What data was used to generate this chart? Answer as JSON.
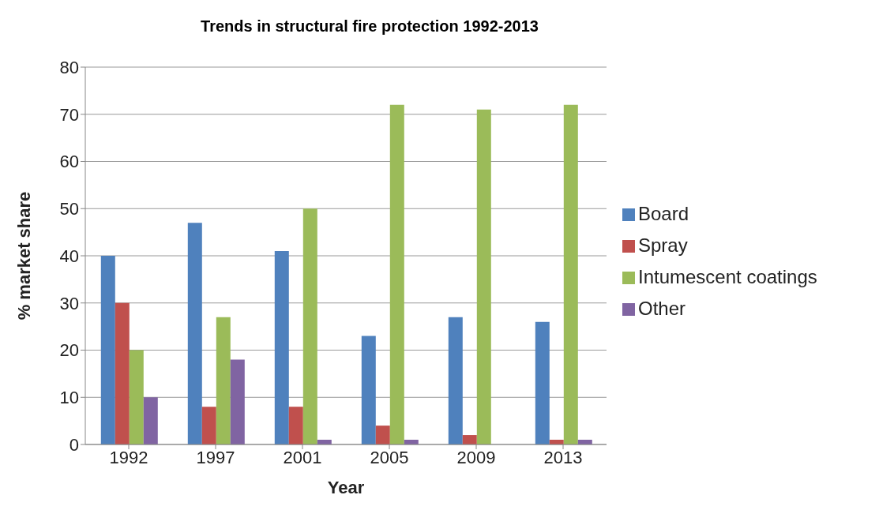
{
  "chart_data": {
    "type": "bar",
    "title": "Trends in structural fire protection 1992-2013",
    "xlabel": "Year",
    "ylabel": "% market share",
    "categories": [
      "1992",
      "1997",
      "2001",
      "2005",
      "2009",
      "2013"
    ],
    "series": [
      {
        "name": "Board",
        "color": "#4f81bd",
        "values": [
          40,
          47,
          41,
          23,
          27,
          26
        ]
      },
      {
        "name": "Spray",
        "color": "#c0504d",
        "values": [
          30,
          8,
          8,
          4,
          2,
          1
        ]
      },
      {
        "name": "Intumescent coatings",
        "color": "#9bbb59",
        "values": [
          20,
          27,
          50,
          72,
          71,
          72
        ]
      },
      {
        "name": "Other",
        "color": "#8064a2",
        "values": [
          10,
          18,
          1,
          1,
          0,
          1
        ]
      }
    ],
    "ylim": [
      0,
      80
    ],
    "yticks": [
      0,
      10,
      20,
      30,
      40,
      50,
      60,
      70,
      80
    ],
    "grid": "y",
    "legend": "right"
  }
}
